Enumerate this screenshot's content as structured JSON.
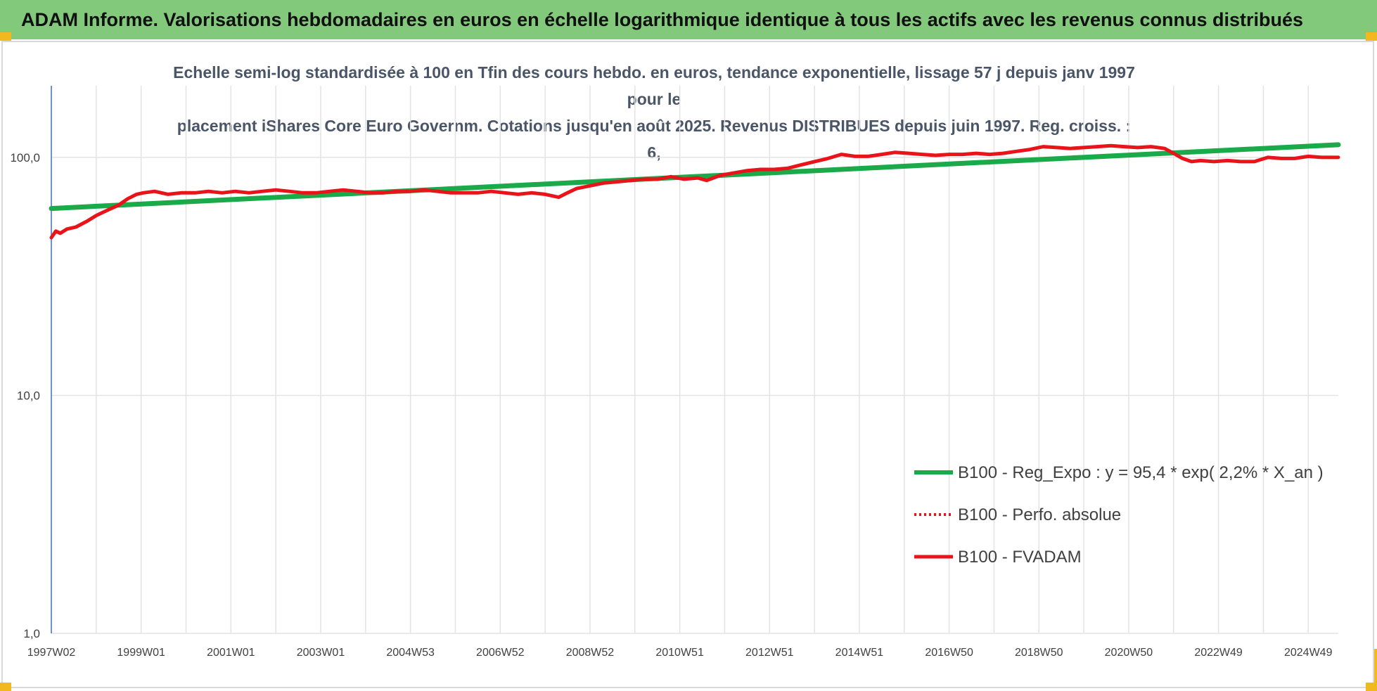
{
  "banner": {
    "title": "ADAM Informe. Valorisations hebdomadaires en euros en échelle logarithmique identique à tous les actifs avec les revenus connus distribués"
  },
  "colors": {
    "banner_bg": "#82c97c",
    "regression": "#1aaa4a",
    "performance": "#e8141a",
    "fvadam": "#e8141a",
    "grid": "#e3e3e3",
    "axis": "#4472c4"
  },
  "chart_data": {
    "type": "line",
    "title": "Echelle semi-log standardisée à 100 en Tfin des cours hebdo. en euros, tendance exponentielle, lissage 57 j depuis janv 1997 pour le placement iShares Core Euro Governm. Cotations jusqu'en août 2025. Revenus DISTRIBUES depuis juin 1997. Reg. croiss. : 6,",
    "title_lines": [
      "Echelle semi-log standardisée à 100 en Tfin des cours hebdo. en euros, tendance exponentielle, lissage 57 j depuis janv 1997 pour le",
      "placement iShares Core Euro Governm. Cotations jusqu'en août 2025. Revenus DISTRIBUES depuis juin 1997. Reg. croiss. : 6,"
    ],
    "y_scale": "log",
    "ylim": [
      1,
      200
    ],
    "y_ticks": [
      1,
      10,
      100
    ],
    "y_tick_labels": [
      "1,0",
      "10,0",
      "100,0"
    ],
    "xlim": [
      1997.0,
      2025.67
    ],
    "x_tick_labels": [
      "1997W02",
      "1999W01",
      "2001W01",
      "2003W01",
      "2004W53",
      "2006W52",
      "2008W52",
      "2010W51",
      "2012W51",
      "2014W51",
      "2016W50",
      "2018W50",
      "2020W50",
      "2022W49",
      "2024W49"
    ],
    "x_tick_positions": [
      1997.0,
      1999.0,
      2001.0,
      2003.0,
      2005.0,
      2007.0,
      2009.0,
      2011.0,
      2013.0,
      2015.0,
      2017.0,
      2019.0,
      2021.0,
      2023.0,
      2025.0
    ],
    "grid": "vertical-and-horizontal",
    "legend_position": "bottom-right",
    "series": [
      {
        "name": "B100 - Reg_Expo : y = 95,4 * exp( 2,2% *  X_an )",
        "style": "solid",
        "color": "#1aaa4a",
        "x": [
          1997.0,
          2025.67
        ],
        "y": [
          61,
          113
        ]
      },
      {
        "name": "B100 - Perfo. absolue",
        "style": "dotted",
        "color": "#e8141a",
        "x": [],
        "y": []
      },
      {
        "name": "B100 - FVADAM",
        "style": "solid",
        "color": "#e8141a",
        "x": [
          1997.0,
          1997.1,
          1997.2,
          1997.35,
          1997.55,
          1997.8,
          1998.0,
          1998.25,
          1998.5,
          1998.7,
          1998.9,
          1999.05,
          1999.3,
          1999.6,
          1999.9,
          2000.2,
          2000.5,
          2000.8,
          2001.1,
          2001.4,
          2001.7,
          2002.0,
          2002.3,
          2002.6,
          2002.9,
          2003.2,
          2003.5,
          2003.8,
          2004.1,
          2004.4,
          2004.7,
          2005.0,
          2005.3,
          2005.6,
          2005.9,
          2006.2,
          2006.5,
          2006.8,
          2007.1,
          2007.4,
          2007.7,
          2008.0,
          2008.3,
          2008.5,
          2008.7,
          2009.0,
          2009.3,
          2009.6,
          2009.9,
          2010.2,
          2010.5,
          2010.8,
          2011.1,
          2011.4,
          2011.6,
          2011.9,
          2012.2,
          2012.5,
          2012.8,
          2013.1,
          2013.4,
          2013.7,
          2014.0,
          2014.3,
          2014.6,
          2014.9,
          2015.2,
          2015.5,
          2015.8,
          2016.1,
          2016.4,
          2016.7,
          2017.0,
          2017.3,
          2017.6,
          2017.9,
          2018.2,
          2018.5,
          2018.8,
          2019.1,
          2019.4,
          2019.7,
          2020.0,
          2020.3,
          2020.6,
          2020.9,
          2021.2,
          2021.5,
          2021.8,
          2022.0,
          2022.2,
          2022.4,
          2022.6,
          2022.9,
          2023.2,
          2023.5,
          2023.8,
          2024.1,
          2024.4,
          2024.7,
          2025.0,
          2025.3,
          2025.67
        ],
        "y": [
          46,
          49,
          48,
          50,
          51,
          54,
          57,
          60,
          63,
          67,
          70,
          71,
          72,
          70,
          71,
          71,
          72,
          71,
          72,
          71,
          72,
          73,
          72,
          71,
          71,
          72,
          73,
          72,
          71,
          71,
          72,
          72,
          73,
          72,
          71,
          71,
          71,
          72,
          71,
          70,
          71,
          70,
          68,
          71,
          74,
          76,
          78,
          79,
          80,
          81,
          81,
          83,
          81,
          82,
          80,
          84,
          86,
          88,
          89,
          89,
          90,
          93,
          96,
          99,
          103,
          101,
          101,
          103,
          105,
          104,
          103,
          102,
          103,
          103,
          104,
          103,
          104,
          106,
          108,
          111,
          110,
          109,
          110,
          111,
          112,
          111,
          110,
          111,
          109,
          104,
          99,
          96,
          97,
          96,
          97,
          96,
          96,
          100,
          99,
          99,
          101,
          100,
          100
        ]
      }
    ]
  }
}
